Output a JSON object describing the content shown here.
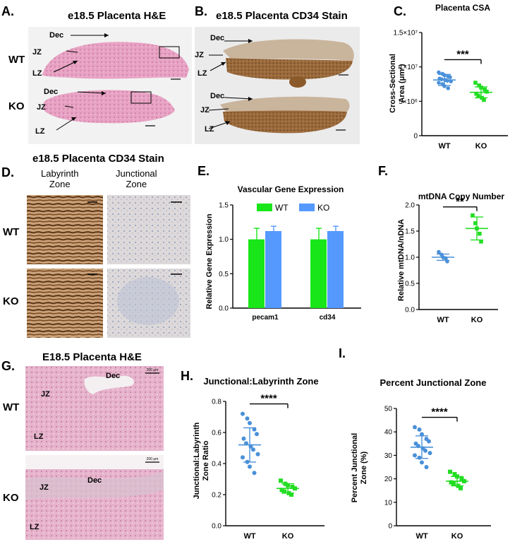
{
  "panel_letters": [
    "A.",
    "B.",
    "C.",
    "D.",
    "E.",
    "F.",
    "G.",
    "H.",
    "I."
  ],
  "panelA": {
    "title": "e18.5 Placenta H&E",
    "rows": [
      "WT",
      "KO"
    ],
    "labels": [
      "Dec",
      "JZ",
      "LZ"
    ]
  },
  "panelB": {
    "title": "e18.5 Placenta CD34 Stain",
    "labels": [
      "Dec",
      "JZ",
      "LZ"
    ]
  },
  "panelD": {
    "title": "e18.5 Placenta CD34 Stain",
    "col1": "Labyrinth\nZone",
    "col1a": "Labyrinth",
    "col1b": "Zone",
    "col2a": "Junctional",
    "col2b": "Zone",
    "rows": [
      "WT",
      "KO"
    ]
  },
  "panelG": {
    "title": "E18.5 Placenta H&E",
    "rows": [
      "WT",
      "KO"
    ],
    "labels": [
      "Dec",
      "JZ",
      "LZ"
    ],
    "scalebar": "200 μm"
  },
  "colors": {
    "wt_blue": "#4a90d9",
    "ko_green": "#22dd22",
    "bar_green": "#19e619",
    "bar_blue": "#5599ff",
    "he_pink": "#e8a7c6",
    "cd34_brown": "#8b5a2b"
  },
  "chart_data": [
    {
      "id": "C",
      "type": "scatter",
      "title": "Placenta CSA",
      "ylabel": "Cross-Sectional Area (μm²)",
      "ylabel1": "Cross-Sectional",
      "ylabel2": "Area (μm²)",
      "categories": [
        "WT",
        "KO"
      ],
      "ylim": [
        0,
        15000000
      ],
      "yticks": [
        "0",
        "5×10⁶",
        "1×10⁷",
        "1.5×10⁷"
      ],
      "significance": "***",
      "series": [
        {
          "values": [
            9200000,
            9000000,
            8800000,
            8600000,
            8500000,
            8300000,
            8200000,
            8100000,
            8000000,
            7900000,
            7700000,
            7500000,
            7200000,
            6900000
          ],
          "mean": 8100000,
          "sd": 800000
        },
        {
          "values": [
            7700000,
            7300000,
            7000000,
            6700000,
            6400000,
            6100000,
            5800000,
            5500000,
            5200000
          ],
          "mean": 6300000,
          "sd": 800000
        }
      ]
    },
    {
      "id": "E",
      "type": "bar",
      "title": "Vascular Gene Expression",
      "ylabel": "Relative Gene Expression",
      "categories": [
        "pecam1",
        "cd34"
      ],
      "ylim": [
        0,
        1.5
      ],
      "yticks": [
        "0.0",
        "0.5",
        "1.0",
        "1.5"
      ],
      "legend": [
        "WT",
        "KO"
      ],
      "series": [
        {
          "name": "WT",
          "values": [
            1.0,
            1.0
          ],
          "err": [
            0.16,
            0.16
          ]
        },
        {
          "name": "KO",
          "values": [
            1.12,
            1.12
          ],
          "err": [
            0.07,
            0.07
          ]
        }
      ]
    },
    {
      "id": "F",
      "type": "scatter",
      "title": "mtDNA Copy Number",
      "ylabel": "Relative mtDNA/nDNA",
      "categories": [
        "WT",
        "KO"
      ],
      "ylim": [
        0,
        2.0
      ],
      "yticks": [
        "0.0",
        "0.5",
        "1.0",
        "1.5",
        "2.0"
      ],
      "significance": "**",
      "series": [
        {
          "values": [
            1.1,
            1.05,
            1.0,
            0.98,
            0.92
          ],
          "mean": 1.0,
          "sd": 0.06
        },
        {
          "values": [
            1.8,
            1.65,
            1.55,
            1.45,
            1.3
          ],
          "mean": 1.55,
          "sd": 0.22
        }
      ]
    },
    {
      "id": "H",
      "type": "scatter",
      "title": "Junctional:Labyrinth Zone",
      "ylabel": "Junctional:Labyrinth Zone Ratio",
      "ylabel1": "Junctional:Labyrinth",
      "ylabel2": "Zone Ratio",
      "categories": [
        "WT",
        "KO"
      ],
      "ylim": [
        0,
        0.8
      ],
      "yticks": [
        "0.0",
        "0.2",
        "0.4",
        "0.6",
        "0.8"
      ],
      "significance": "****",
      "series": [
        {
          "values": [
            0.72,
            0.69,
            0.66,
            0.62,
            0.59,
            0.56,
            0.53,
            0.51,
            0.49,
            0.46,
            0.44,
            0.41,
            0.38,
            0.34
          ],
          "mean": 0.52,
          "sd": 0.11
        },
        {
          "values": [
            0.29,
            0.27,
            0.26,
            0.25,
            0.24,
            0.23,
            0.22,
            0.21,
            0.2
          ],
          "mean": 0.24,
          "sd": 0.03
        }
      ]
    },
    {
      "id": "I",
      "type": "scatter",
      "title": "Percent Junctional Zone",
      "ylabel": "Percent Junctional Zone (%)",
      "ylabel1": "Percent Junctional",
      "ylabel2": "Zone (%)",
      "categories": [
        "WT",
        "KO"
      ],
      "ylim": [
        0,
        50
      ],
      "yticks": [
        "0",
        "10",
        "20",
        "30",
        "40",
        "50"
      ],
      "significance": "****",
      "series": [
        {
          "values": [
            42,
            41,
            39,
            37,
            36,
            35,
            34,
            33,
            32,
            31,
            30,
            29,
            27,
            25
          ],
          "mean": 33.5,
          "sd": 4.8
        },
        {
          "values": [
            23,
            22,
            21,
            20,
            19,
            18.5,
            18,
            17,
            16
          ],
          "mean": 19,
          "sd": 2
        }
      ]
    }
  ]
}
